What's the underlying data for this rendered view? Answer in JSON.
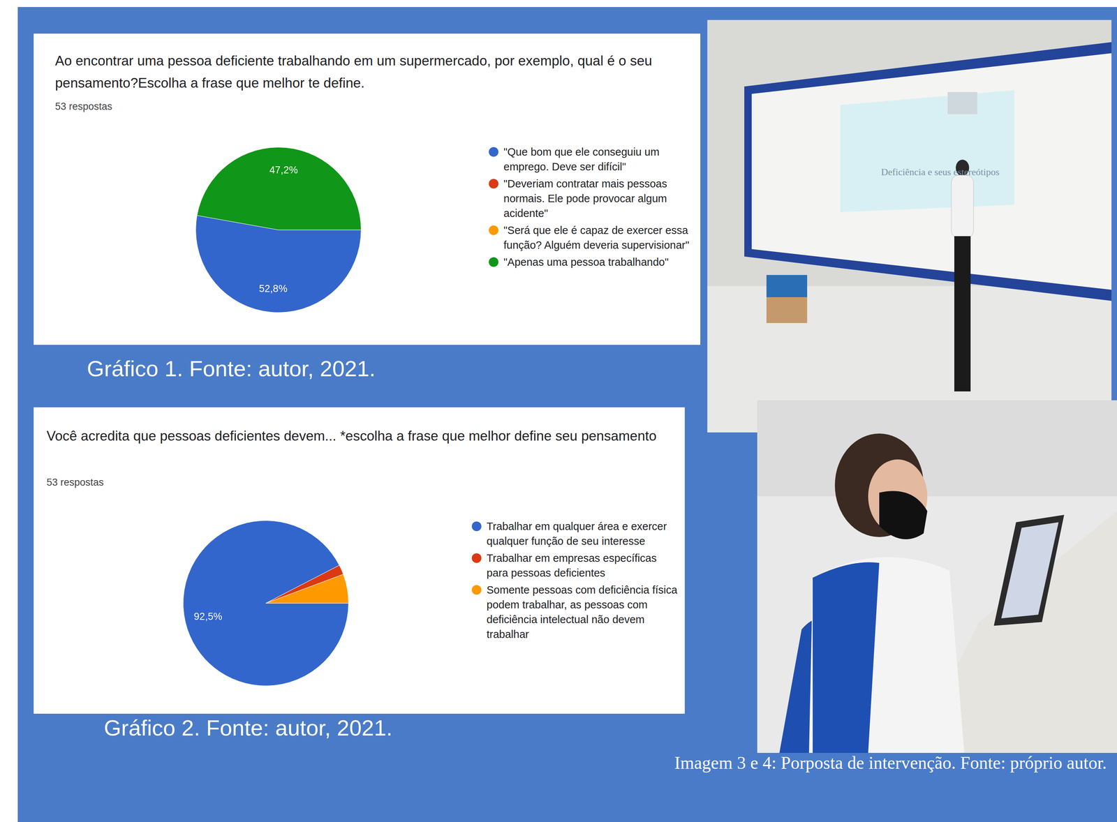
{
  "chart_data": [
    {
      "type": "pie",
      "title": "Ao encontrar uma pessoa deficiente trabalhando em um supermercado, por exemplo, qual é o seu pensamento?Escolha a frase que melhor te define.",
      "subtitle": "53 respostas",
      "categories": [
        "\"Que bom que ele conseguiu um emprego. Deve ser difícil\"",
        "\"Deveriam contratar mais pessoas normais. Ele pode provocar algum acidente\"",
        "\"Será que ele é capaz de exercer essa função? Alguém deveria supervisionar\"",
        "\"Apenas uma pessoa trabalhando\""
      ],
      "values": [
        52.8,
        0,
        0,
        47.2
      ],
      "value_labels": [
        "52,8%",
        null,
        null,
        "47,2%"
      ],
      "colors": [
        "#3366cc",
        "#dc3912",
        "#ff9900",
        "#109618"
      ],
      "legend": "right",
      "data_labels": true,
      "caption": "Gráfico 1. Fonte: autor, 2021."
    },
    {
      "type": "pie",
      "title": "Você acredita que pessoas deficientes devem... *escolha a frase que melhor define seu pensamento",
      "subtitle": "53 respostas",
      "categories": [
        "Trabalhar em qualquer área e exercer qualquer função de seu interesse",
        "Trabalhar em empresas específicas para pessoas deficientes",
        "Somente pessoas com deficiência física podem trabalhar, as pessoas com deficiência intelectual não devem trabalhar"
      ],
      "values": [
        92.5,
        1.9,
        5.7
      ],
      "value_labels": [
        "92,5%",
        null,
        null
      ],
      "colors": [
        "#3366cc",
        "#dc3912",
        "#ff9900"
      ],
      "legend": "right",
      "data_labels": true,
      "caption": "Gráfico 2. Fonte: autor, 2021."
    }
  ],
  "photos": {
    "slide_text": "Deficiência e seus estereótipos",
    "caption": "Imagem 3 e 4: Porposta de intervenção. Fonte: próprio autor."
  }
}
